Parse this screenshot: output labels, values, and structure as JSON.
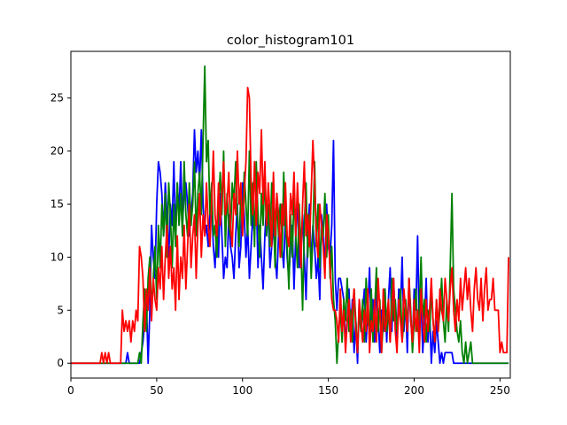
{
  "chart_data": {
    "type": "line",
    "title": "color_histogram101",
    "x": [
      0,
      1,
      2,
      3,
      4,
      5,
      6,
      7,
      8,
      9,
      10,
      11,
      12,
      13,
      14,
      15,
      16,
      17,
      18,
      19,
      20,
      21,
      22,
      23,
      24,
      25,
      26,
      27,
      28,
      29,
      30,
      31,
      32,
      33,
      34,
      35,
      36,
      37,
      38,
      39,
      40,
      41,
      42,
      43,
      44,
      45,
      46,
      47,
      48,
      49,
      50,
      51,
      52,
      53,
      54,
      55,
      56,
      57,
      58,
      59,
      60,
      61,
      62,
      63,
      64,
      65,
      66,
      67,
      68,
      69,
      70,
      71,
      72,
      73,
      74,
      75,
      76,
      77,
      78,
      79,
      80,
      81,
      82,
      83,
      84,
      85,
      86,
      87,
      88,
      89,
      90,
      91,
      92,
      93,
      94,
      95,
      96,
      97,
      98,
      99,
      100,
      101,
      102,
      103,
      104,
      105,
      106,
      107,
      108,
      109,
      110,
      111,
      112,
      113,
      114,
      115,
      116,
      117,
      118,
      119,
      120,
      121,
      122,
      123,
      124,
      125,
      126,
      127,
      128,
      129,
      130,
      131,
      132,
      133,
      134,
      135,
      136,
      137,
      138,
      139,
      140,
      141,
      142,
      143,
      144,
      145,
      146,
      147,
      148,
      149,
      150,
      151,
      152,
      153,
      154,
      155,
      156,
      157,
      158,
      159,
      160,
      161,
      162,
      163,
      164,
      165,
      166,
      167,
      168,
      169,
      170,
      171,
      172,
      173,
      174,
      175,
      176,
      177,
      178,
      179,
      180,
      181,
      182,
      183,
      184,
      185,
      186,
      187,
      188,
      189,
      190,
      191,
      192,
      193,
      194,
      195,
      196,
      197,
      198,
      199,
      200,
      201,
      202,
      203,
      204,
      205,
      206,
      207,
      208,
      209,
      210,
      211,
      212,
      213,
      214,
      215,
      216,
      217,
      218,
      219,
      220,
      221,
      222,
      223,
      224,
      225,
      226,
      227,
      228,
      229,
      230,
      231,
      232,
      233,
      234,
      235,
      236,
      237,
      238,
      239,
      240,
      241,
      242,
      243,
      244,
      245,
      246,
      247,
      248,
      249,
      250,
      251,
      252,
      253,
      254,
      255
    ],
    "series": [
      {
        "color": "#0000ff",
        "values": [
          0,
          0,
          0,
          0,
          0,
          0,
          0,
          0,
          0,
          0,
          0,
          0,
          0,
          0,
          0,
          0,
          0,
          0,
          0,
          0,
          0,
          0,
          0,
          0,
          0,
          0,
          0,
          0,
          0,
          0,
          0,
          0,
          0,
          1,
          0,
          0,
          0,
          0,
          0,
          0,
          0,
          1,
          2,
          4,
          6,
          0,
          5,
          13,
          10,
          8,
          15,
          19,
          18,
          16,
          12,
          17,
          14,
          10,
          15,
          13,
          19,
          12,
          17,
          14,
          19,
          13,
          16,
          17,
          15,
          12,
          14,
          16,
          22,
          18,
          20,
          17,
          22,
          15,
          12,
          13,
          11,
          14,
          15,
          11,
          9,
          13,
          10,
          16,
          12,
          8,
          10,
          9,
          14,
          11,
          10,
          8,
          12,
          15,
          9,
          11,
          17,
          14,
          10,
          13,
          8,
          11,
          14,
          12,
          16,
          9,
          13,
          10,
          7,
          12,
          15,
          14,
          9,
          11,
          13,
          10,
          8,
          12,
          15,
          11,
          9,
          14,
          10,
          8,
          11,
          13,
          7,
          12,
          16,
          9,
          11,
          14,
          10,
          6,
          12,
          15,
          9,
          13,
          11,
          8,
          10,
          6,
          14,
          12,
          9,
          15,
          11,
          10,
          13,
          21,
          8,
          5,
          8,
          8,
          7,
          6,
          2,
          4,
          7,
          3,
          6,
          1,
          4,
          0,
          6,
          3,
          5,
          7,
          2,
          5,
          9,
          3,
          6,
          2,
          8,
          4,
          1,
          5,
          3,
          7,
          2,
          6,
          9,
          3,
          8,
          4,
          2,
          7,
          5,
          10,
          3,
          6,
          1,
          8,
          4,
          2,
          7,
          5,
          12,
          3,
          6,
          1,
          4,
          8,
          2,
          5,
          0,
          3,
          1,
          4,
          2,
          0,
          1,
          0,
          1,
          1,
          1,
          1,
          1,
          0,
          0,
          0,
          0,
          0,
          0,
          0,
          0,
          0,
          0,
          0,
          0,
          0,
          0,
          0,
          0,
          0,
          0,
          0,
          0,
          0,
          0,
          0,
          0,
          0,
          0,
          0,
          0,
          0,
          0,
          0,
          0,
          0
        ]
      },
      {
        "color": "#008000",
        "values": [
          0,
          0,
          0,
          0,
          0,
          0,
          0,
          0,
          0,
          0,
          0,
          0,
          0,
          0,
          0,
          0,
          0,
          0,
          0,
          0,
          0,
          0,
          0,
          0,
          0,
          0,
          0,
          0,
          0,
          0,
          0,
          0,
          0,
          0,
          0,
          0,
          0,
          0,
          0,
          0,
          1,
          0,
          4,
          7,
          3,
          8,
          10,
          5,
          8,
          11,
          6,
          13,
          9,
          15,
          12,
          16,
          10,
          17,
          14,
          9,
          15,
          11,
          17,
          13,
          16,
          12,
          19,
          14,
          12,
          17,
          13,
          15,
          19,
          12,
          16,
          18,
          14,
          21,
          28,
          19,
          21,
          14,
          17,
          12,
          13,
          10,
          15,
          18,
          14,
          20,
          11,
          16,
          13,
          12,
          17,
          15,
          19,
          14,
          11,
          16,
          13,
          18,
          15,
          12,
          20,
          13,
          17,
          11,
          19,
          14,
          10,
          16,
          13,
          18,
          12,
          15,
          11,
          17,
          14,
          9,
          16,
          12,
          15,
          10,
          18,
          13,
          11,
          7,
          14,
          10,
          16,
          12,
          9,
          15,
          11,
          5,
          13,
          17,
          10,
          14,
          8,
          12,
          19,
          11,
          15,
          9,
          13,
          12,
          16,
          10,
          14,
          8,
          11,
          6,
          4,
          0,
          3,
          5,
          2,
          6,
          4,
          8,
          3,
          5,
          2,
          7,
          4,
          1,
          5,
          3,
          6,
          2,
          8,
          4,
          3,
          7,
          2,
          5,
          9,
          3,
          6,
          1,
          4,
          7,
          3,
          5,
          2,
          8,
          4,
          6,
          3,
          5,
          7,
          2,
          4,
          6,
          3,
          8,
          5,
          1,
          4,
          7,
          3,
          5,
          10,
          4,
          6,
          2,
          5,
          3,
          7,
          4,
          2,
          6,
          3,
          5,
          8,
          4,
          2,
          6,
          3,
          9,
          16,
          7,
          5,
          3,
          2,
          4,
          1,
          0,
          2,
          0,
          1,
          2,
          0,
          0,
          0,
          0,
          0,
          0,
          0,
          0,
          0,
          0,
          0,
          0,
          0,
          0,
          0,
          0,
          0,
          0,
          0,
          0,
          0,
          0
        ]
      },
      {
        "color": "#ff0000",
        "values": [
          0,
          0,
          0,
          0,
          0,
          0,
          0,
          0,
          0,
          0,
          0,
          0,
          0,
          0,
          0,
          0,
          0,
          0,
          1,
          0,
          1,
          0,
          1,
          0,
          0,
          0,
          0,
          0,
          0,
          0,
          5,
          3,
          4,
          3,
          4,
          2,
          4,
          3,
          5,
          4,
          11,
          10,
          8,
          3,
          7,
          5,
          9,
          4,
          8,
          6,
          5,
          9,
          7,
          11,
          6,
          10,
          13,
          8,
          11,
          7,
          9,
          5,
          12,
          6,
          10,
          8,
          13,
          7,
          11,
          15,
          9,
          12,
          14,
          8,
          13,
          16,
          10,
          14,
          12,
          17,
          13,
          11,
          15,
          20,
          14,
          12,
          17,
          13,
          16,
          19,
          14,
          15,
          18,
          13,
          11,
          16,
          14,
          20,
          15,
          17,
          12,
          16,
          19,
          26,
          25,
          17,
          14,
          19,
          13,
          18,
          16,
          22,
          15,
          19,
          13,
          17,
          14,
          11,
          18,
          12,
          16,
          14,
          10,
          15,
          13,
          17,
          12,
          11,
          16,
          14,
          18,
          12,
          17,
          13,
          9,
          15,
          19,
          12,
          14,
          11,
          16,
          21,
          17,
          12,
          10,
          15,
          13,
          11,
          8,
          14,
          12,
          9,
          6,
          5,
          5,
          4,
          2,
          7,
          3,
          5,
          1,
          4,
          6,
          2,
          5,
          7,
          3,
          1,
          6,
          4,
          2,
          5,
          3,
          7,
          1,
          4,
          3,
          6,
          2,
          8,
          5,
          1,
          7,
          3,
          4,
          6,
          2,
          5,
          8,
          3,
          1,
          6,
          4,
          2,
          7,
          5,
          3,
          8,
          4,
          2,
          6,
          3,
          5,
          1,
          7,
          4,
          2,
          6,
          3,
          5,
          8,
          4,
          2,
          6,
          3,
          7,
          5,
          4,
          8,
          6,
          4,
          7,
          9,
          5,
          3,
          6,
          4,
          8,
          5,
          7,
          9,
          6,
          8,
          5,
          3,
          7,
          9,
          6,
          5,
          8,
          4,
          7,
          9,
          5,
          6,
          6,
          8,
          5,
          5,
          5,
          1,
          2,
          1,
          1,
          1,
          10
        ]
      }
    ],
    "xlim": [
      0,
      256
    ],
    "xticks": [
      0,
      50,
      100,
      150,
      200,
      250
    ],
    "ylim": [
      -1.4,
      29.4
    ],
    "yticks": [
      0,
      5,
      10,
      15,
      20,
      25
    ]
  }
}
